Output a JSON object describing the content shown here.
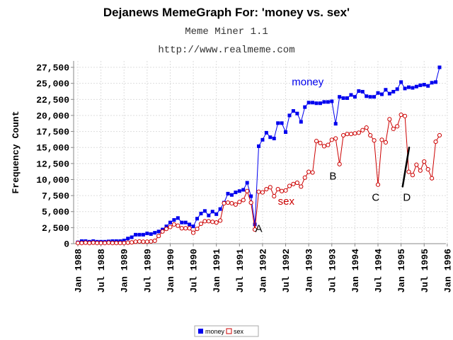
{
  "chart_data": {
    "type": "line",
    "title": "Dejanews MemeGraph For: 'money vs. sex'",
    "subtitle": "Meme Miner 1.1",
    "source_url": "http://www.realmeme.com",
    "ylabel": "Frequency Count",
    "xlabel": "",
    "ylim": [
      0,
      28500
    ],
    "yticks": [
      0,
      2500,
      5000,
      7500,
      10000,
      12500,
      15000,
      17500,
      20000,
      22500,
      25000,
      27500
    ],
    "ytick_labels": [
      "0",
      "2,500",
      "5,000",
      "7,500",
      "10,000",
      "12,500",
      "15,000",
      "17,500",
      "20,000",
      "22,500",
      "25,000",
      "27,500"
    ],
    "xticks": [
      "Jan 1988",
      "Jul 1988",
      "Jan 1989",
      "Jul 1989",
      "Jan 1990",
      "Jul 1990",
      "Jan 1991",
      "Jul 1991",
      "Jan 1992",
      "Jul 1992",
      "Jan 1993",
      "Jul 1993",
      "Jan 1994",
      "Jul 1994",
      "Jan 1995",
      "Jul 1995",
      "Jan 1996"
    ],
    "grid": true,
    "legend": "bottom-center",
    "series": [
      {
        "name": "money",
        "color": "#0000ee",
        "marker": "filled-square",
        "points": [
          [
            0,
            200
          ],
          [
            1,
            400
          ],
          [
            2,
            400
          ],
          [
            3,
            300
          ],
          [
            4,
            400
          ],
          [
            5,
            300
          ],
          [
            6,
            300
          ],
          [
            7,
            300
          ],
          [
            8,
            350
          ],
          [
            9,
            400
          ],
          [
            10,
            400
          ],
          [
            11,
            400
          ],
          [
            12,
            500
          ],
          [
            13,
            800
          ],
          [
            14,
            1000
          ],
          [
            15,
            1400
          ],
          [
            16,
            1400
          ],
          [
            17,
            1400
          ],
          [
            18,
            1600
          ],
          [
            19,
            1500
          ],
          [
            20,
            1700
          ],
          [
            21,
            1900
          ],
          [
            22,
            2200
          ],
          [
            23,
            2700
          ],
          [
            24,
            3300
          ],
          [
            25,
            3700
          ],
          [
            26,
            4000
          ],
          [
            27,
            3300
          ],
          [
            28,
            3300
          ],
          [
            29,
            3000
          ],
          [
            30,
            2700
          ],
          [
            31,
            3900
          ],
          [
            32,
            4700
          ],
          [
            33,
            5100
          ],
          [
            34,
            4400
          ],
          [
            35,
            5000
          ],
          [
            36,
            4600
          ],
          [
            37,
            5400
          ],
          [
            38,
            6400
          ],
          [
            39,
            7800
          ],
          [
            40,
            7600
          ],
          [
            41,
            8000
          ],
          [
            42,
            8200
          ],
          [
            43,
            8400
          ],
          [
            44,
            9500
          ],
          [
            45,
            7400
          ],
          [
            46,
            3000
          ],
          [
            47,
            15200
          ],
          [
            48,
            16200
          ],
          [
            49,
            17300
          ],
          [
            50,
            16600
          ],
          [
            51,
            16400
          ],
          [
            52,
            18800
          ],
          [
            53,
            18800
          ],
          [
            54,
            17400
          ],
          [
            55,
            20000
          ],
          [
            56,
            20700
          ],
          [
            57,
            20300
          ],
          [
            58,
            19000
          ],
          [
            59,
            21300
          ],
          [
            60,
            22000
          ],
          [
            61,
            22000
          ],
          [
            62,
            21900
          ],
          [
            63,
            21900
          ],
          [
            64,
            22100
          ],
          [
            65,
            22100
          ],
          [
            66,
            22200
          ],
          [
            67,
            18700
          ],
          [
            68,
            22900
          ],
          [
            69,
            22700
          ],
          [
            70,
            22700
          ],
          [
            71,
            23200
          ],
          [
            72,
            22900
          ],
          [
            73,
            23800
          ],
          [
            74,
            23700
          ],
          [
            75,
            23000
          ],
          [
            76,
            22900
          ],
          [
            77,
            22900
          ],
          [
            78,
            23500
          ],
          [
            79,
            23300
          ],
          [
            80,
            24000
          ],
          [
            81,
            23400
          ],
          [
            82,
            23700
          ],
          [
            83,
            24100
          ],
          [
            84,
            25200
          ],
          [
            85,
            24200
          ],
          [
            86,
            24400
          ],
          [
            87,
            24300
          ],
          [
            88,
            24500
          ],
          [
            89,
            24700
          ],
          [
            90,
            24800
          ],
          [
            91,
            24600
          ],
          [
            92,
            25100
          ],
          [
            93,
            25200
          ],
          [
            94,
            27500
          ]
        ]
      },
      {
        "name": "sex",
        "color": "#cc0000",
        "marker": "hollow-circle",
        "points": [
          [
            0,
            100
          ],
          [
            1,
            100
          ],
          [
            2,
            150
          ],
          [
            3,
            100
          ],
          [
            4,
            150
          ],
          [
            5,
            100
          ],
          [
            6,
            100
          ],
          [
            7,
            100
          ],
          [
            8,
            150
          ],
          [
            9,
            100
          ],
          [
            10,
            100
          ],
          [
            11,
            100
          ],
          [
            12,
            100
          ],
          [
            13,
            150
          ],
          [
            14,
            200
          ],
          [
            15,
            300
          ],
          [
            16,
            350
          ],
          [
            17,
            300
          ],
          [
            18,
            300
          ],
          [
            19,
            350
          ],
          [
            20,
            450
          ],
          [
            21,
            1200
          ],
          [
            22,
            1900
          ],
          [
            23,
            2300
          ],
          [
            24,
            2600
          ],
          [
            25,
            3000
          ],
          [
            26,
            2800
          ],
          [
            27,
            2400
          ],
          [
            28,
            2400
          ],
          [
            29,
            2400
          ],
          [
            30,
            1700
          ],
          [
            31,
            2300
          ],
          [
            32,
            3100
          ],
          [
            33,
            3500
          ],
          [
            34,
            3500
          ],
          [
            35,
            3400
          ],
          [
            36,
            3300
          ],
          [
            37,
            3600
          ],
          [
            38,
            6300
          ],
          [
            39,
            6400
          ],
          [
            40,
            6300
          ],
          [
            41,
            6100
          ],
          [
            42,
            6500
          ],
          [
            43,
            6800
          ],
          [
            44,
            8200
          ],
          [
            45,
            6400
          ],
          [
            46,
            2200
          ],
          [
            47,
            8100
          ],
          [
            48,
            8000
          ],
          [
            49,
            8500
          ],
          [
            50,
            8800
          ],
          [
            51,
            7400
          ],
          [
            52,
            8500
          ],
          [
            53,
            8200
          ],
          [
            54,
            8300
          ],
          [
            55,
            9000
          ],
          [
            56,
            9300
          ],
          [
            57,
            9500
          ],
          [
            58,
            8900
          ],
          [
            59,
            10300
          ],
          [
            60,
            11200
          ],
          [
            61,
            11100
          ],
          [
            62,
            16000
          ],
          [
            63,
            15700
          ],
          [
            64,
            15200
          ],
          [
            65,
            15400
          ],
          [
            66,
            16200
          ],
          [
            67,
            16400
          ],
          [
            68,
            12400
          ],
          [
            69,
            16900
          ],
          [
            70,
            17100
          ],
          [
            71,
            17100
          ],
          [
            72,
            17200
          ],
          [
            73,
            17300
          ],
          [
            74,
            17700
          ],
          [
            75,
            18100
          ],
          [
            76,
            16900
          ],
          [
            77,
            16100
          ],
          [
            78,
            9200
          ],
          [
            79,
            16200
          ],
          [
            80,
            15800
          ],
          [
            81,
            19400
          ],
          [
            82,
            17900
          ],
          [
            83,
            18300
          ],
          [
            84,
            20100
          ],
          [
            85,
            19900
          ],
          [
            86,
            11200
          ],
          [
            87,
            10700
          ],
          [
            88,
            12300
          ],
          [
            89,
            11400
          ],
          [
            90,
            12800
          ],
          [
            91,
            11600
          ],
          [
            92,
            10200
          ],
          [
            93,
            15900
          ],
          [
            94,
            16900
          ]
        ]
      }
    ],
    "series_labels": [
      {
        "text": "money",
        "x": 55.6,
        "y": 24700
      },
      {
        "text": "sex",
        "x": 52,
        "y": 6100
      }
    ],
    "annotations": [
      {
        "text": "A",
        "x": 47,
        "y": 1800
      },
      {
        "text": "B",
        "x": 66.3,
        "y": 10000
      },
      {
        "text": "C",
        "x": 77.4,
        "y": 6700
      },
      {
        "text": "D",
        "x": 85.5,
        "y": 6700
      }
    ],
    "annotation_stroke": {
      "from": [
        84.4,
        8900
      ],
      "to": [
        86.1,
        15000
      ]
    }
  }
}
